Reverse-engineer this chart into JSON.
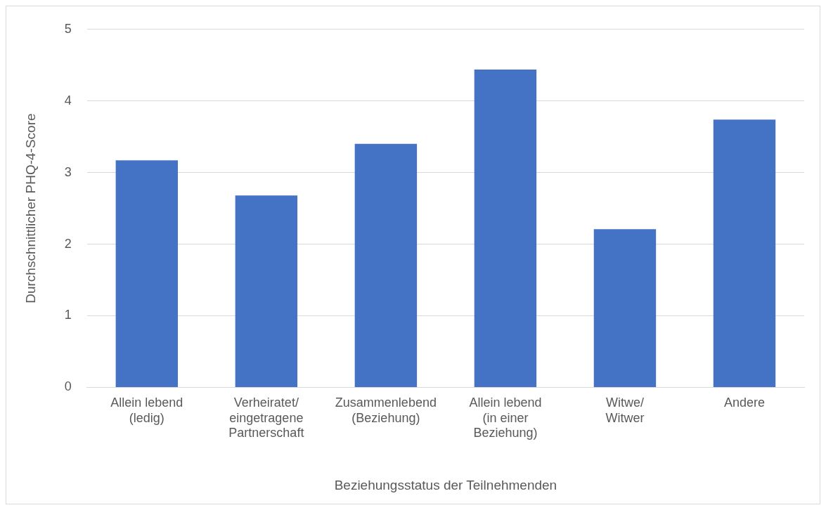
{
  "chart_data": {
    "type": "bar",
    "xlabel": "Beziehungsstatus der Teilnehmenden",
    "ylabel": "Durchschnittlicher PHQ-4-Score",
    "categories": [
      "Allein lebend (ledig)",
      "Verheiratet/ eingetragene Partnerschaft",
      "Zusammenlebend (Beziehung)",
      "Allein lebend (in einer Beziehung)",
      "Witwe/ Witwer",
      "Andere"
    ],
    "values": [
      3.17,
      2.68,
      3.4,
      4.44,
      2.21,
      3.74
    ],
    "color": "#4472c4",
    "ylim": [
      0,
      5
    ],
    "yticks": [
      0,
      1,
      2,
      3,
      4,
      5
    ],
    "grid": "y",
    "legend": false
  }
}
